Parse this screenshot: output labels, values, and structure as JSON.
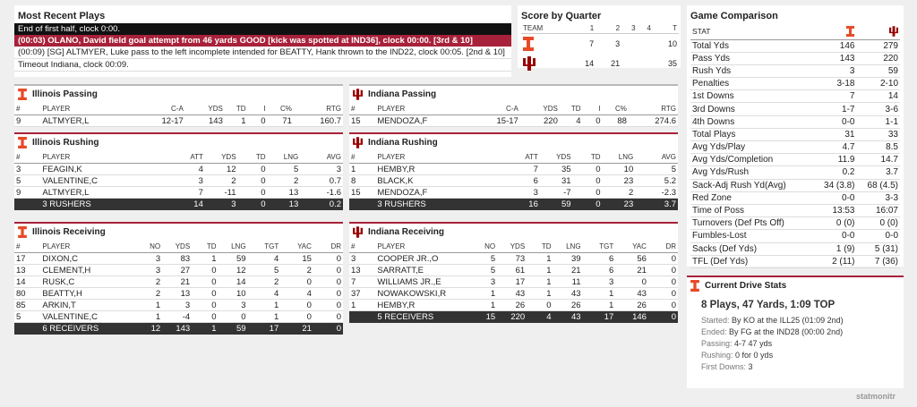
{
  "plays": {
    "title": "Most Recent Plays",
    "lines": [
      "End of first half, clock 0:00.",
      "(00:03) OLANO, David field goal attempt from 46 yards GOOD [kick was spotted at IND36], clock 00:00. [3rd & 10]",
      "(00:09) [SG] ALTMYER, Luke pass to the left incomplete intended for BEATTY, Hank thrown to the IND22, clock 00:05. [2nd & 10]",
      "Timeout Indiana, clock 00:09."
    ]
  },
  "score": {
    "title": "Score by Quarter",
    "header": [
      "TEAM",
      "1",
      "2",
      "3",
      "4",
      "T"
    ],
    "rows": [
      {
        "team": "Illinois",
        "q": [
          "7",
          "3",
          "",
          ""
        ],
        "t": "10"
      },
      {
        "team": "Indiana",
        "q": [
          "14",
          "21",
          "",
          ""
        ],
        "t": "35"
      }
    ]
  },
  "ill_pass": {
    "title": "Illinois Passing",
    "header": [
      "#",
      "PLAYER",
      "C-A",
      "YDS",
      "TD",
      "I",
      "C%",
      "RTG"
    ],
    "rows": [
      [
        "9",
        "ALTMYER,L",
        "12-17",
        "143",
        "1",
        "0",
        "71",
        "160.7"
      ]
    ]
  },
  "ind_pass": {
    "title": "Indiana Passing",
    "header": [
      "#",
      "PLAYER",
      "C-A",
      "YDS",
      "TD",
      "I",
      "C%",
      "RTG"
    ],
    "rows": [
      [
        "15",
        "MENDOZA,F",
        "15-17",
        "220",
        "4",
        "0",
        "88",
        "274.6"
      ]
    ]
  },
  "ill_rush": {
    "title": "Illinois Rushing",
    "header": [
      "#",
      "PLAYER",
      "ATT",
      "YDS",
      "TD",
      "LNG",
      "AVG"
    ],
    "rows": [
      [
        "3",
        "FEAGIN,K",
        "4",
        "12",
        "0",
        "5",
        "3"
      ],
      [
        "5",
        "VALENTINE,C",
        "3",
        "2",
        "0",
        "2",
        "0.7"
      ],
      [
        "9",
        "ALTMYER,L",
        "7",
        "-11",
        "0",
        "13",
        "-1.6"
      ]
    ],
    "total": [
      "",
      "3 RUSHERS",
      "14",
      "3",
      "0",
      "13",
      "0.2"
    ]
  },
  "ind_rush": {
    "title": "Indiana Rushing",
    "header": [
      "#",
      "PLAYER",
      "ATT",
      "YDS",
      "TD",
      "LNG",
      "AVG"
    ],
    "rows": [
      [
        "1",
        "HEMBY,R",
        "7",
        "35",
        "0",
        "10",
        "5"
      ],
      [
        "8",
        "BLACK,K",
        "6",
        "31",
        "0",
        "23",
        "5.2"
      ],
      [
        "15",
        "MENDOZA,F",
        "3",
        "-7",
        "0",
        "2",
        "-2.3"
      ]
    ],
    "total": [
      "",
      "3 RUSHERS",
      "16",
      "59",
      "0",
      "23",
      "3.7"
    ]
  },
  "ill_rec": {
    "title": "Illinois Receiving",
    "header": [
      "#",
      "PLAYER",
      "NO",
      "YDS",
      "TD",
      "LNG",
      "TGT",
      "YAC",
      "DR"
    ],
    "rows": [
      [
        "17",
        "DIXON,C",
        "3",
        "83",
        "1",
        "59",
        "4",
        "15",
        "0"
      ],
      [
        "13",
        "CLEMENT,H",
        "3",
        "27",
        "0",
        "12",
        "5",
        "2",
        "0"
      ],
      [
        "14",
        "RUSK,C",
        "2",
        "21",
        "0",
        "14",
        "2",
        "0",
        "0"
      ],
      [
        "80",
        "BEATTY,H",
        "2",
        "13",
        "0",
        "10",
        "4",
        "4",
        "0"
      ],
      [
        "85",
        "ARKIN,T",
        "1",
        "3",
        "0",
        "3",
        "1",
        "0",
        "0"
      ],
      [
        "5",
        "VALENTINE,C",
        "1",
        "-4",
        "0",
        "0",
        "1",
        "0",
        "0"
      ]
    ],
    "total": [
      "",
      "6 RECEIVERS",
      "12",
      "143",
      "1",
      "59",
      "17",
      "21",
      "0"
    ]
  },
  "ind_rec": {
    "title": "Indiana Receiving",
    "header": [
      "#",
      "PLAYER",
      "NO",
      "YDS",
      "TD",
      "LNG",
      "TGT",
      "YAC",
      "DR"
    ],
    "rows": [
      [
        "3",
        "COOPER JR.,O",
        "5",
        "73",
        "1",
        "39",
        "6",
        "56",
        "0"
      ],
      [
        "13",
        "SARRATT,E",
        "5",
        "61",
        "1",
        "21",
        "6",
        "21",
        "0"
      ],
      [
        "7",
        "WILLIAMS JR.,E",
        "3",
        "17",
        "1",
        "11",
        "3",
        "0",
        "0"
      ],
      [
        "37",
        "NOWAKOWSKI,R",
        "1",
        "43",
        "1",
        "43",
        "1",
        "43",
        "0"
      ],
      [
        "1",
        "HEMBY,R",
        "1",
        "26",
        "0",
        "26",
        "1",
        "26",
        "0"
      ]
    ],
    "total": [
      "",
      "5 RECEIVERS",
      "15",
      "220",
      "4",
      "43",
      "17",
      "146",
      "0"
    ]
  },
  "cmp": {
    "title": "Game Comparison",
    "stat_label": "STAT",
    "rows": [
      [
        "Total Yds",
        "146",
        "279"
      ],
      [
        "Pass Yds",
        "143",
        "220"
      ],
      [
        "Rush Yds",
        "3",
        "59"
      ],
      [
        "Penalties",
        "3-18",
        "2-10"
      ],
      [
        "1st Downs",
        "7",
        "14"
      ],
      [
        "3rd Downs",
        "1-7",
        "3-6"
      ],
      [
        "4th Downs",
        "0-0",
        "1-1"
      ],
      [
        "Total Plays",
        "31",
        "33"
      ],
      [
        "Avg Yds/Play",
        "4.7",
        "8.5"
      ],
      [
        "Avg Yds/Completion",
        "11.9",
        "14.7"
      ],
      [
        "Avg Yds/Rush",
        "0.2",
        "3.7"
      ],
      [
        "Sack-Adj Rush Yd(Avg)",
        "34 (3.8)",
        "68 (4.5)"
      ],
      [
        "Red Zone",
        "0-0",
        "3-3"
      ],
      [
        "Time of Poss",
        "13:53",
        "16:07"
      ],
      [
        "Turnovers (Def Pts Off)",
        "0 (0)",
        "0 (0)"
      ],
      [
        "Fumbles-Lost",
        "0-0",
        "0-0"
      ],
      [
        "Sacks (Def Yds)",
        "1 (9)",
        "5 (31)"
      ],
      [
        "TFL (Def Yds)",
        "2 (11)",
        "7 (36)"
      ]
    ]
  },
  "drive": {
    "title": "Current Drive Stats",
    "summary": "8 Plays, 47 Yards, 1:09 TOP",
    "started_label": "Started:",
    "started": "By KO at the ILL25 (01:09 2nd)",
    "ended_label": "Ended:",
    "ended": "By FG at the IND28 (00:00 2nd)",
    "passing_label": "Passing:",
    "passing": "4-7 47 yds",
    "rushing_label": "Rushing:",
    "rushing": "0 for 0 yds",
    "first_label": "First Downs:",
    "first": "3"
  },
  "watermark": "statmonitr",
  "colors": {
    "illinois": "#e84a27",
    "indiana": "#990000",
    "accent": "#a8213a"
  }
}
